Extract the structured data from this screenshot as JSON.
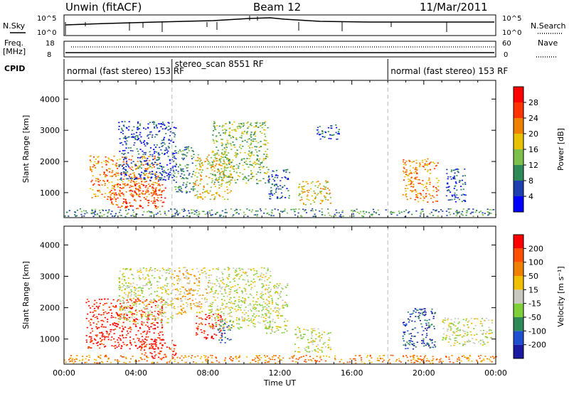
{
  "header": {
    "site": "Unwin (fitACF)",
    "beam": "Beam 12",
    "date": "11/Mar/2011"
  },
  "status_panels": {
    "nsky_label": "N.Sky",
    "nsearch_label": "N.Search",
    "noise_ticks": [
      "10^5",
      "10^0"
    ],
    "freq_label_1": "Freq.",
    "freq_label_2": "[MHz]",
    "freq_ticks": [
      "18",
      "8"
    ],
    "nave_label": "Nave",
    "nave_ticks": [
      "60",
      "0"
    ],
    "cpid_label": "CPID",
    "cpid_segments": [
      {
        "label": "normal (fast stereo) 153 RF",
        "start_hr": 0
      },
      {
        "label": "stereo_scan 8551 RF",
        "start_hr": 6
      },
      {
        "label": "normal (fast stereo) 153 RF",
        "start_hr": 18
      }
    ]
  },
  "colorbars": {
    "power": {
      "label": "Power [dB]",
      "ticks": [
        "4",
        "8",
        "12",
        "16",
        "20",
        "24",
        "28"
      ],
      "colors": [
        "#0000ff",
        "#1f3fb0",
        "#2e8b57",
        "#7cbf4a",
        "#e6c200",
        "#f08000",
        "#ff3300",
        "#ff0000"
      ]
    },
    "velocity": {
      "label": "Velocity [m s⁻¹]",
      "ticks": [
        "200",
        "100",
        "50",
        "15",
        "-15",
        "-50",
        "-100",
        "-200"
      ],
      "colors": [
        "#1a1aa0",
        "#1f4fd0",
        "#2e8b57",
        "#7ecf3a",
        "#c8c8c0",
        "#f0c000",
        "#f08000",
        "#ff5000",
        "#ff0000"
      ]
    }
  },
  "chart_data": [
    {
      "type": "heatmap",
      "parameter": "Power",
      "ylabel": "Slant Range [km]",
      "xlabel": "",
      "xlim": [
        0,
        24
      ],
      "ylim": [
        200,
        4600
      ],
      "yticks": [
        "1000",
        "2000",
        "3000",
        "4000"
      ],
      "xticks": [
        "00:00",
        "04:00",
        "08:00",
        "12:00",
        "16:00",
        "20:00",
        "00:00"
      ],
      "colorscale": "power",
      "regions": [
        {
          "t0": 1.4,
          "t1": 5.3,
          "r0": 800,
          "r1": 2200,
          "level": 5
        },
        {
          "t0": 2.5,
          "t1": 5.6,
          "r0": 500,
          "r1": 1300,
          "level": 6
        },
        {
          "t0": 3.0,
          "t1": 6.2,
          "r0": 1400,
          "r1": 3300,
          "level": 1
        },
        {
          "t0": 6.0,
          "t1": 7.2,
          "r0": 1000,
          "r1": 2500,
          "level": 2
        },
        {
          "t0": 7.2,
          "t1": 9.3,
          "r0": 800,
          "r1": 2300,
          "level": 4
        },
        {
          "t0": 8.2,
          "t1": 11.3,
          "r0": 1300,
          "r1": 3300,
          "level": 3
        },
        {
          "t0": 11.3,
          "t1": 12.5,
          "r0": 800,
          "r1": 1800,
          "level": 1
        },
        {
          "t0": 13.0,
          "t1": 14.8,
          "r0": 600,
          "r1": 1400,
          "level": 4
        },
        {
          "t0": 14.0,
          "t1": 15.3,
          "r0": 2700,
          "r1": 3200,
          "level": 1
        },
        {
          "t0": 0.0,
          "t1": 24.0,
          "r0": 250,
          "r1": 500,
          "level": 2
        },
        {
          "t0": 18.8,
          "t1": 20.8,
          "r0": 700,
          "r1": 2100,
          "level": 5
        },
        {
          "t0": 21.2,
          "t1": 22.3,
          "r0": 700,
          "r1": 1800,
          "level": 1
        }
      ]
    },
    {
      "type": "heatmap",
      "parameter": "Velocity",
      "ylabel": "Slant Range [km]",
      "xlabel": "Time UT",
      "xlim": [
        0,
        24
      ],
      "ylim": [
        200,
        4600
      ],
      "yticks": [
        "1000",
        "2000",
        "3000",
        "4000"
      ],
      "xticks": [
        "00:00",
        "04:00",
        "08:00",
        "12:00",
        "16:00",
        "20:00",
        "00:00"
      ],
      "colorscale": "velocity",
      "regions": [
        {
          "t0": 1.2,
          "t1": 5.5,
          "r0": 700,
          "r1": 2300,
          "level": 8
        },
        {
          "t0": 4.2,
          "t1": 6.2,
          "r0": 400,
          "r1": 1000,
          "level": 8
        },
        {
          "t0": 3.0,
          "t1": 6.0,
          "r0": 1500,
          "r1": 3300,
          "level": 4
        },
        {
          "t0": 6.0,
          "t1": 8.0,
          "r0": 1800,
          "r1": 3300,
          "level": 5
        },
        {
          "t0": 7.3,
          "t1": 8.8,
          "r0": 1000,
          "r1": 1800,
          "level": 8
        },
        {
          "t0": 8.5,
          "t1": 9.3,
          "r0": 900,
          "r1": 1600,
          "level": 1
        },
        {
          "t0": 8.0,
          "t1": 11.5,
          "r0": 1300,
          "r1": 3300,
          "level": 4
        },
        {
          "t0": 11.2,
          "t1": 12.4,
          "r0": 1200,
          "r1": 2800,
          "level": 4
        },
        {
          "t0": 12.8,
          "t1": 14.8,
          "r0": 600,
          "r1": 1400,
          "level": 4
        },
        {
          "t0": 0.0,
          "t1": 24.0,
          "r0": 250,
          "r1": 500,
          "level": 6
        },
        {
          "t0": 18.8,
          "t1": 20.6,
          "r0": 700,
          "r1": 2000,
          "level": 1
        },
        {
          "t0": 21.0,
          "t1": 23.8,
          "r0": 800,
          "r1": 1700,
          "level": 4
        }
      ]
    }
  ]
}
